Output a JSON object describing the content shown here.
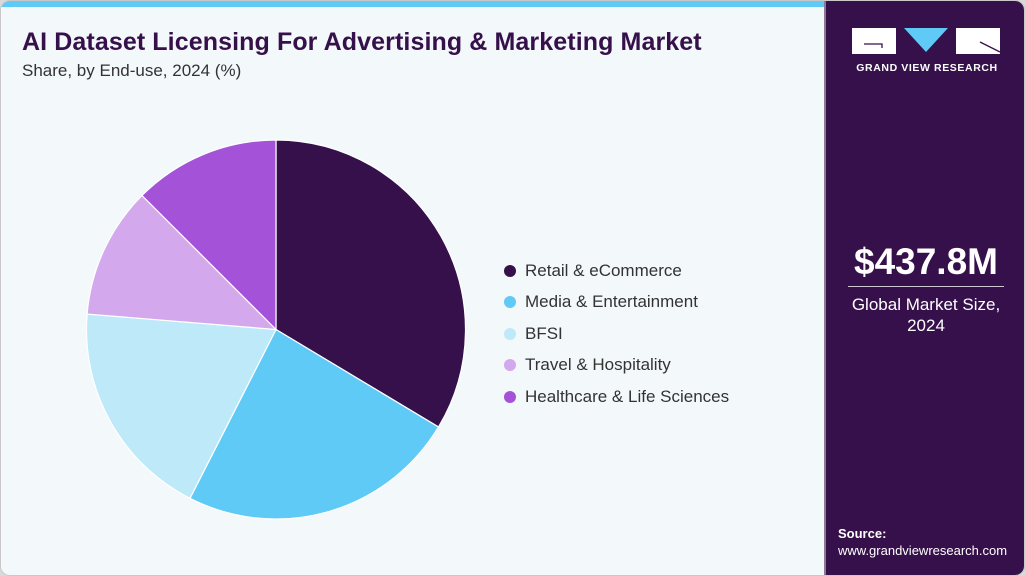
{
  "header": {
    "title": "AI Dataset Licensing For Advertising & Marketing Market",
    "subtitle": "Share, by End-use, 2024 (%)"
  },
  "legend": {
    "items": [
      {
        "label": "Retail & eCommerce",
        "color": "#36104a"
      },
      {
        "label": "Media & Entertainment",
        "color": "#5ecaf5"
      },
      {
        "label": "BFSI",
        "color": "#bde9f9"
      },
      {
        "label": "Travel & Hospitality",
        "color": "#d4a8ec"
      },
      {
        "label": "Healthcare & Life Sciences",
        "color": "#a452d8"
      }
    ]
  },
  "sidebar": {
    "brand": "GRAND VIEW RESEARCH",
    "market_value": "$437.8M",
    "market_label_line1": "Global Market Size,",
    "market_label_line2": "2024",
    "source_label": "Source:",
    "source_url": "www.grandviewresearch.com"
  },
  "colors": {
    "accent_bar": "#5ecaf5",
    "panel_dark": "#36104a",
    "background": "#f3f8fb"
  },
  "chart_data": {
    "type": "pie",
    "title": "AI Dataset Licensing For Advertising & Marketing Market",
    "subtitle": "Share, by End-use, 2024 (%)",
    "categories": [
      "Retail & eCommerce",
      "Media & Entertainment",
      "BFSI",
      "Travel & Hospitality",
      "Healthcare & Life Sciences"
    ],
    "values": [
      33.6,
      23.9,
      18.8,
      11.2,
      12.5
    ],
    "colors": [
      "#36104a",
      "#5ecaf5",
      "#bde9f9",
      "#d4a8ec",
      "#a452d8"
    ],
    "start_angle": "12 o'clock, clockwise",
    "legend_position": "right",
    "annotations": [
      "$437.8M Global Market Size, 2024"
    ]
  }
}
